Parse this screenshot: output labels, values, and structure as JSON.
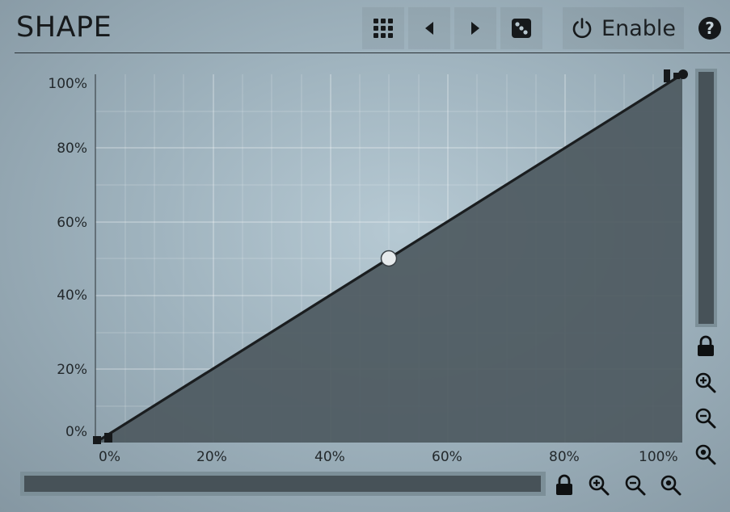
{
  "header": {
    "title": "SHAPE",
    "enable_label": "Enable",
    "help_label": "?",
    "icons": [
      "grid-menu-icon",
      "arrow-left-icon",
      "arrow-right-icon",
      "dice-randomize-icon",
      "power-icon",
      "help-icon"
    ]
  },
  "graph": {
    "y_axis_labels": [
      "100%",
      "80%",
      "60%",
      "40%",
      "20%",
      "0%"
    ],
    "x_axis_labels": [
      "0%",
      "20%",
      "40%",
      "60%",
      "80%",
      "100%"
    ],
    "curve": {
      "type": "linear",
      "points": [
        [
          0,
          0
        ],
        [
          50,
          50
        ],
        [
          100,
          100
        ]
      ],
      "unit": "%"
    },
    "colors": {
      "fill": "#4d5960",
      "line": "#1a1d1f",
      "handle": "#e6eaec"
    }
  },
  "controls": {
    "vertical": [
      "lock-icon",
      "zoom-in-icon",
      "zoom-out-icon",
      "zoom-fit-icon"
    ],
    "horizontal": [
      "lock-icon",
      "zoom-in-icon",
      "zoom-out-icon",
      "zoom-fit-icon"
    ]
  }
}
